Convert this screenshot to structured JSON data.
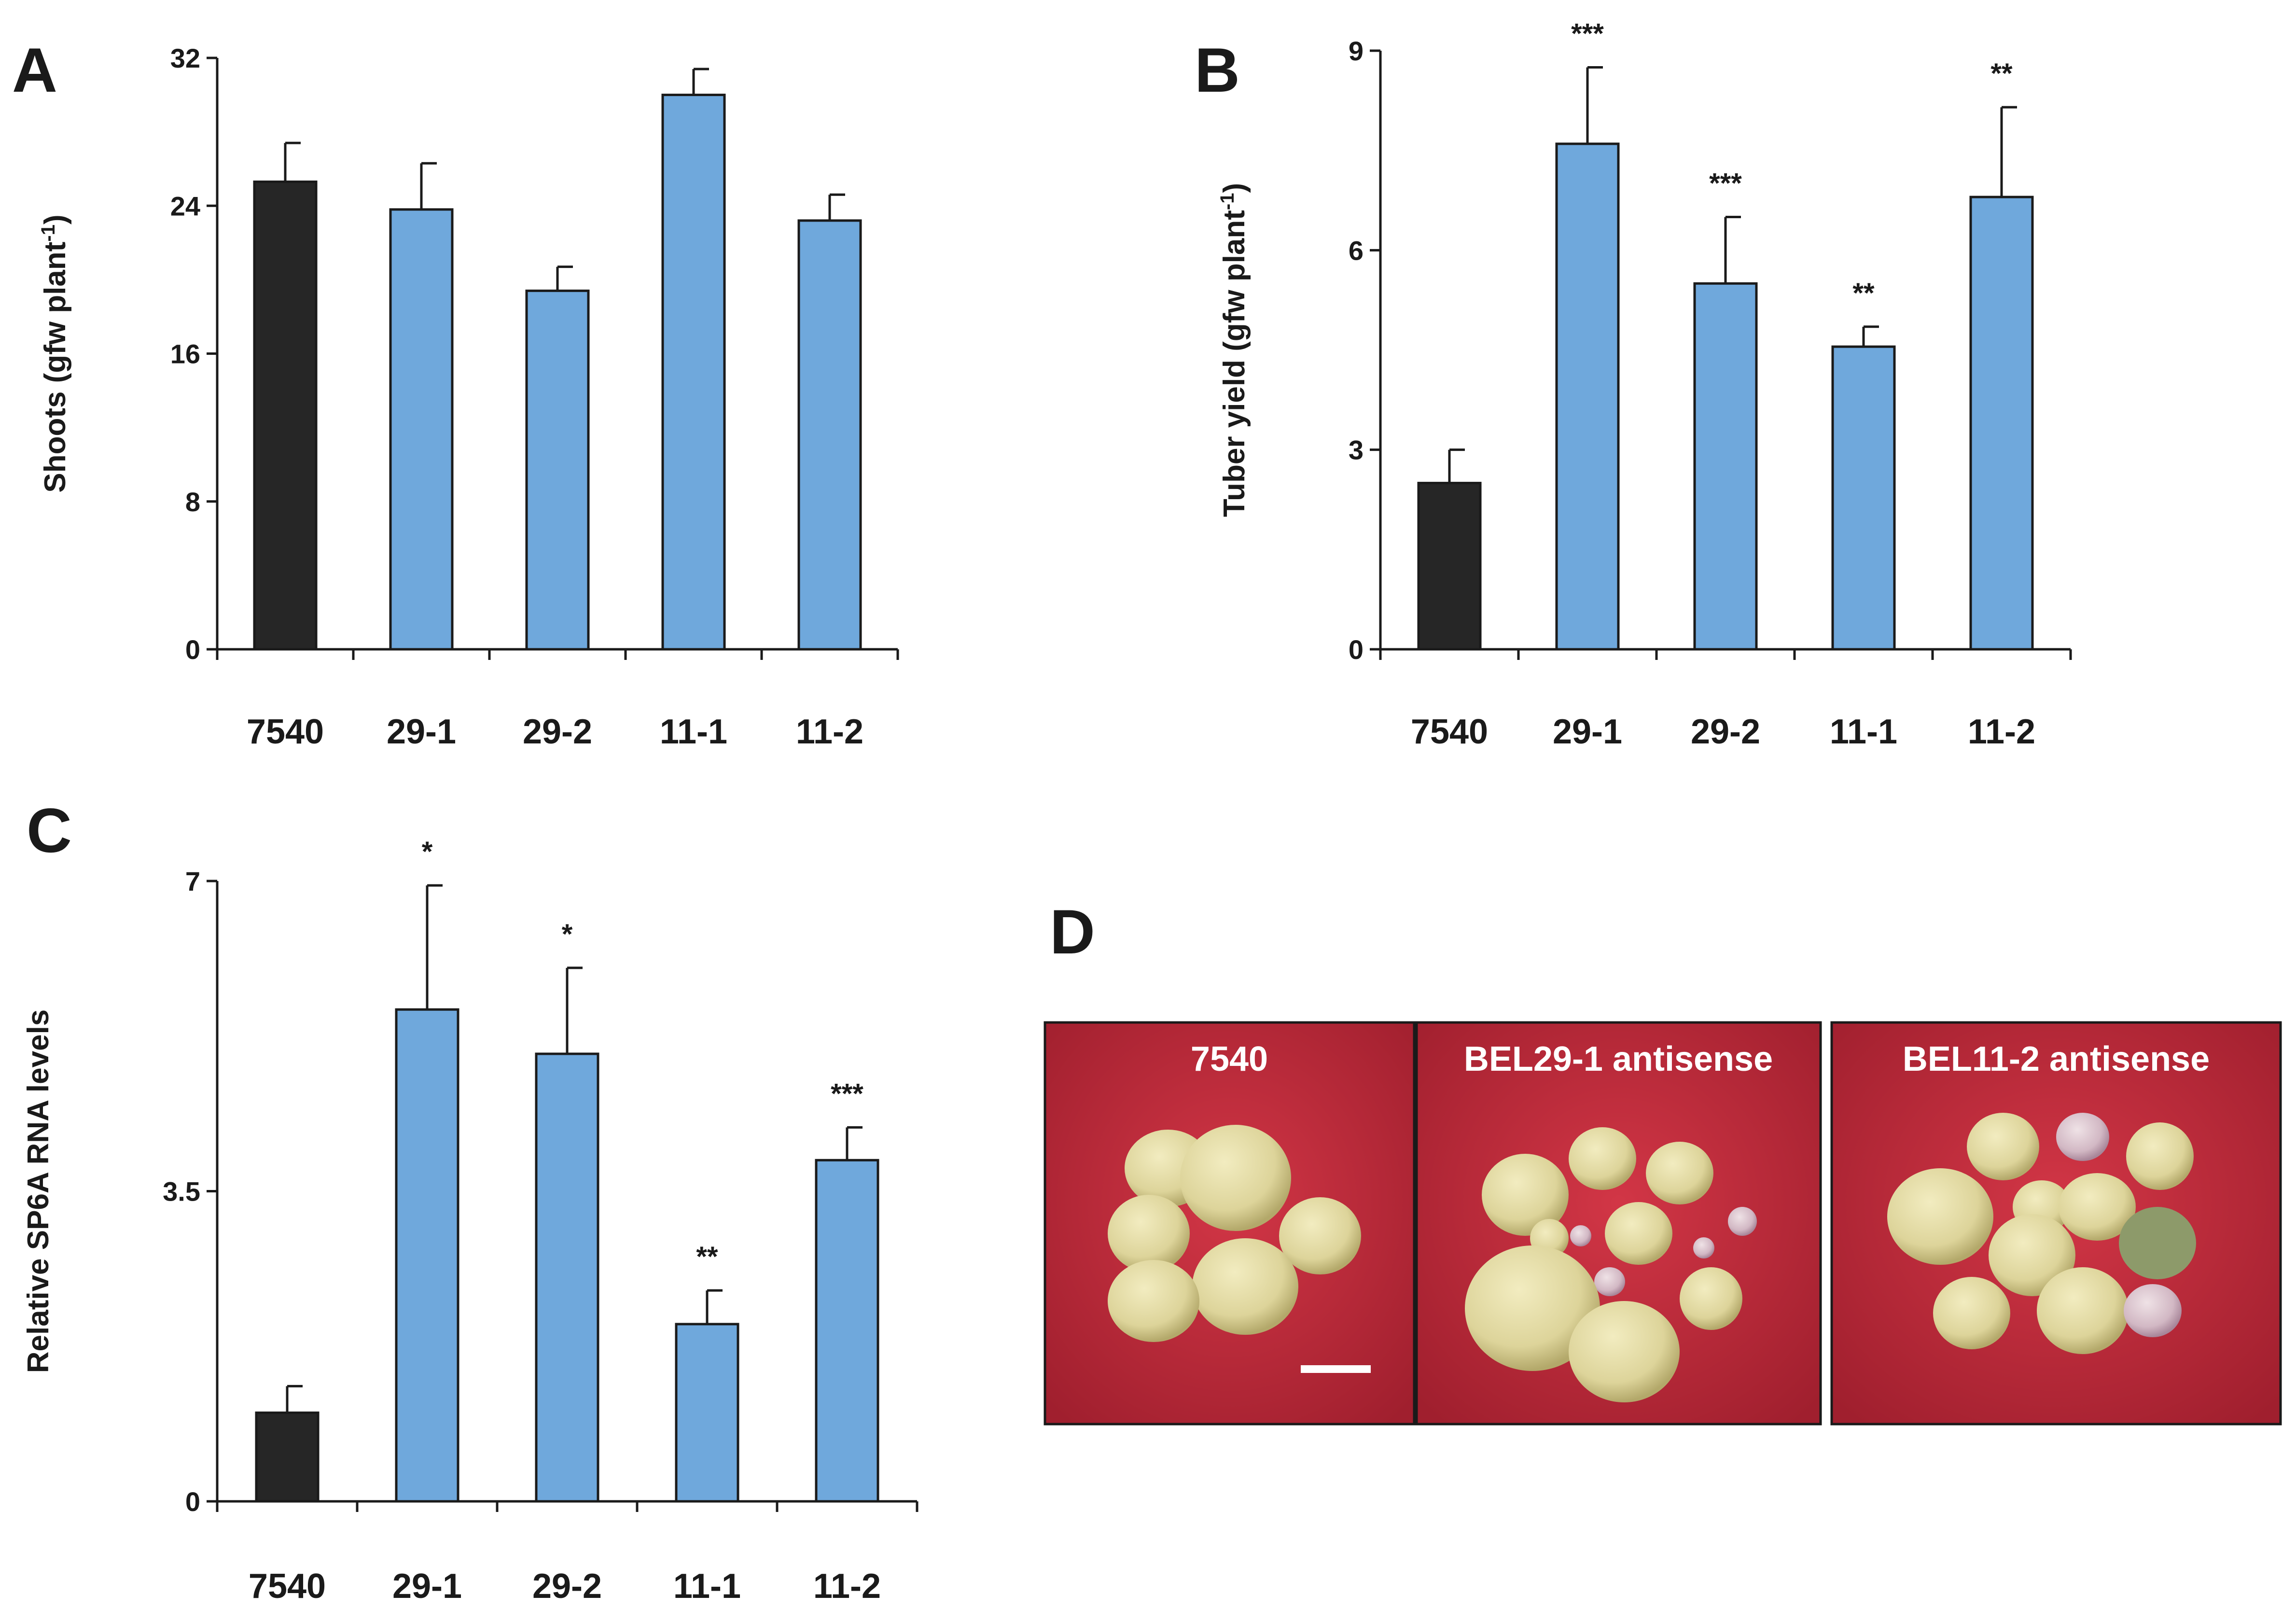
{
  "colors": {
    "control_bar": "#262626",
    "transgenic_bar": "#6fa8dc",
    "axis": "#1a1a1a",
    "photo_bg": "#c22a3a",
    "photo_bg_dark": "#9c1e2c",
    "tuber": "#e3dc9e",
    "tuber_shade": "#b8ae72"
  },
  "chart_data": [
    {
      "panel": "A",
      "type": "bar",
      "categories": [
        "7540",
        "29-1",
        "29-2",
        "11-1",
        "11-2"
      ],
      "values": [
        25.3,
        23.8,
        19.4,
        30.0,
        23.2
      ],
      "errors": [
        2.1,
        2.5,
        1.3,
        1.4,
        1.4
      ],
      "significance": [
        "",
        "",
        "",
        "",
        ""
      ],
      "bar_colors": [
        "control",
        "transgenic",
        "transgenic",
        "transgenic",
        "transgenic"
      ],
      "ylabel": "Shoots (gfw plant",
      "ylabel_sup": "-1",
      "ylabel_close": ")",
      "ylim": [
        0,
        32
      ],
      "yticks": [
        0,
        8,
        16,
        24,
        32
      ],
      "ytick_labels": [
        "0",
        "8",
        "16",
        "24",
        "32"
      ]
    },
    {
      "panel": "B",
      "type": "bar",
      "categories": [
        "7540",
        "29-1",
        "29-2",
        "11-1",
        "11-2"
      ],
      "values": [
        2.5,
        7.6,
        5.5,
        4.55,
        6.8
      ],
      "errors": [
        0.5,
        1.15,
        1.0,
        0.3,
        1.35
      ],
      "significance": [
        "",
        "***",
        "***",
        "**",
        "**"
      ],
      "bar_colors": [
        "control",
        "transgenic",
        "transgenic",
        "transgenic",
        "transgenic"
      ],
      "ylabel": "Tuber yield (gfw plant",
      "ylabel_sup": "-1",
      "ylabel_close": ")",
      "ylim": [
        0,
        9
      ],
      "yticks": [
        0,
        3,
        6,
        9
      ],
      "ytick_labels": [
        "0",
        "3",
        "6",
        "9"
      ]
    },
    {
      "panel": "C",
      "type": "bar",
      "categories": [
        "7540",
        "29-1",
        "29-2",
        "11-1",
        "11-2"
      ],
      "values": [
        1.0,
        5.55,
        5.05,
        2.0,
        3.85
      ],
      "errors": [
        0.3,
        1.4,
        0.97,
        0.38,
        0.37
      ],
      "significance": [
        "",
        "*",
        "*",
        "**",
        "***"
      ],
      "bar_colors": [
        "control",
        "transgenic",
        "transgenic",
        "transgenic",
        "transgenic"
      ],
      "ylabel": "Relative SP6A RNA levels",
      "ylabel_sup": "",
      "ylabel_close": "",
      "ylim": [
        0,
        7
      ],
      "yticks": [
        0,
        3.5,
        7
      ],
      "ytick_labels": [
        "0",
        "3.5",
        "7"
      ]
    }
  ],
  "panel_d": {
    "letter": "D",
    "photos": [
      {
        "title": "7540"
      },
      {
        "title": "BEL29-1 antisense"
      },
      {
        "title": "BEL11-2 antisense"
      }
    ]
  }
}
